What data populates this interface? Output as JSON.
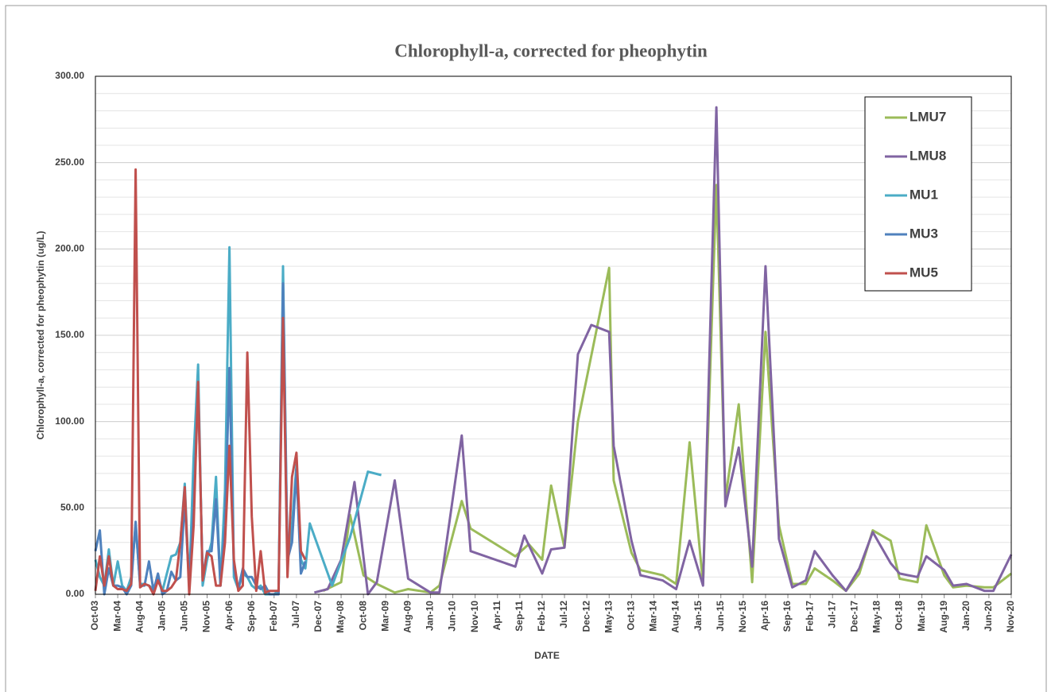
{
  "chart_data": {
    "type": "line",
    "title": "Chlorophyll-a, corrected for pheophytin",
    "x_label": "DATE",
    "y_label": "Chlorophyll-a, corrected for pheophytin (ug/L)",
    "xlim": [
      "2003-10",
      "2020-11"
    ],
    "ylim": [
      0,
      300
    ],
    "yticks": [
      {
        "value": 0,
        "label": "0.00"
      },
      {
        "value": 50,
        "label": "50.00"
      },
      {
        "value": 100,
        "label": "100.00"
      },
      {
        "value": 150,
        "label": "150.00"
      },
      {
        "value": 200,
        "label": "200.00"
      },
      {
        "value": 250,
        "label": "250.00"
      },
      {
        "value": 300,
        "label": "300.00"
      }
    ],
    "ygrid": [
      10,
      20,
      30,
      40,
      50,
      60,
      70,
      80,
      90,
      100,
      110,
      120,
      130,
      140,
      150,
      160,
      170,
      180,
      190,
      200,
      210,
      220,
      230,
      240,
      250,
      260,
      270,
      280,
      290
    ],
    "xticks": [
      {
        "value": "2003-10",
        "label": "Oct-03"
      },
      {
        "value": "2004-03",
        "label": "Mar-04"
      },
      {
        "value": "2004-08",
        "label": "Aug-04"
      },
      {
        "value": "2005-01",
        "label": "Jan-05"
      },
      {
        "value": "2005-06",
        "label": "Jun-05"
      },
      {
        "value": "2005-11",
        "label": "Nov-05"
      },
      {
        "value": "2006-04",
        "label": "Apr-06"
      },
      {
        "value": "2006-09",
        "label": "Sep-06"
      },
      {
        "value": "2007-02",
        "label": "Feb-07"
      },
      {
        "value": "2007-07",
        "label": "Jul-07"
      },
      {
        "value": "2007-12",
        "label": "Dec-07"
      },
      {
        "value": "2008-05",
        "label": "May-08"
      },
      {
        "value": "2008-10",
        "label": "Oct-08"
      },
      {
        "value": "2009-03",
        "label": "Mar-09"
      },
      {
        "value": "2009-08",
        "label": "Aug-09"
      },
      {
        "value": "2010-01",
        "label": "Jan-10"
      },
      {
        "value": "2010-06",
        "label": "Jun-10"
      },
      {
        "value": "2010-11",
        "label": "Nov-10"
      },
      {
        "value": "2011-04",
        "label": "Apr-11"
      },
      {
        "value": "2011-09",
        "label": "Sep-11"
      },
      {
        "value": "2012-02",
        "label": "Feb-12"
      },
      {
        "value": "2012-07",
        "label": "Jul-12"
      },
      {
        "value": "2012-12",
        "label": "Dec-12"
      },
      {
        "value": "2013-05",
        "label": "May-13"
      },
      {
        "value": "2013-10",
        "label": "Oct-13"
      },
      {
        "value": "2014-03",
        "label": "Mar-14"
      },
      {
        "value": "2014-08",
        "label": "Aug-14"
      },
      {
        "value": "2015-01",
        "label": "Jan-15"
      },
      {
        "value": "2015-06",
        "label": "Jun-15"
      },
      {
        "value": "2015-11",
        "label": "Nov-15"
      },
      {
        "value": "2016-04",
        "label": "Apr-16"
      },
      {
        "value": "2016-09",
        "label": "Sep-16"
      },
      {
        "value": "2017-02",
        "label": "Feb-17"
      },
      {
        "value": "2017-07",
        "label": "Jul-17"
      },
      {
        "value": "2017-12",
        "label": "Dec-17"
      },
      {
        "value": "2018-05",
        "label": "May-18"
      },
      {
        "value": "2018-10",
        "label": "Oct-18"
      },
      {
        "value": "2019-03",
        "label": "Mar-19"
      },
      {
        "value": "2019-08",
        "label": "Aug-19"
      },
      {
        "value": "2020-01",
        "label": "Jan-20"
      },
      {
        "value": "2020-06",
        "label": "Jun-20"
      },
      {
        "value": "2020-11",
        "label": "Nov-20"
      }
    ],
    "series": [
      {
        "name": "LMU7",
        "color": "#9bbb59",
        "x": [
          "2008-01",
          "2008-05",
          "2008-07",
          "2008-10",
          "2009-01",
          "2009-05",
          "2009-08",
          "2010-01",
          "2010-03",
          "2010-08",
          "2010-10",
          "2011-08",
          "2011-11",
          "2012-02",
          "2012-04",
          "2012-07",
          "2012-10",
          "2013-05",
          "2013-06",
          "2013-10",
          "2013-12",
          "2014-05",
          "2014-08",
          "2014-11",
          "2015-02",
          "2015-05",
          "2015-07",
          "2015-10",
          "2016-01",
          "2016-04",
          "2016-07",
          "2016-10",
          "2017-01",
          "2017-03",
          "2017-07",
          "2017-10",
          "2018-01",
          "2018-04",
          "2018-08",
          "2018-10",
          "2019-02",
          "2019-04",
          "2019-08",
          "2019-10",
          "2020-01",
          "2020-05",
          "2020-07",
          "2020-11"
        ],
        "values": [
          2,
          7,
          46,
          11,
          6,
          1,
          3,
          1,
          5,
          54,
          38,
          22,
          29,
          20,
          63,
          27,
          100,
          189,
          66,
          24,
          14,
          11,
          6,
          88,
          6,
          237,
          55,
          110,
          7,
          152,
          40,
          6,
          6,
          15,
          8,
          2,
          12,
          37,
          31,
          9,
          7,
          40,
          11,
          4,
          5,
          4,
          4,
          12
        ]
      },
      {
        "name": "LMU8",
        "color": "#8064a2",
        "x": [
          "2007-11",
          "2008-02",
          "2008-05",
          "2008-08",
          "2008-11",
          "2009-01",
          "2009-05",
          "2009-08",
          "2010-01",
          "2010-03",
          "2010-08",
          "2010-10",
          "2011-08",
          "2011-10",
          "2012-02",
          "2012-04",
          "2012-07",
          "2012-10",
          "2013-01",
          "2013-05",
          "2013-06",
          "2013-10",
          "2013-12",
          "2014-05",
          "2014-08",
          "2014-11",
          "2015-02",
          "2015-05",
          "2015-07",
          "2015-10",
          "2016-01",
          "2016-04",
          "2016-07",
          "2016-10",
          "2017-01",
          "2017-03",
          "2017-07",
          "2017-10",
          "2018-01",
          "2018-04",
          "2018-08",
          "2018-10",
          "2019-02",
          "2019-04",
          "2019-08",
          "2019-10",
          "2020-01",
          "2020-05",
          "2020-07",
          "2020-11"
        ],
        "values": [
          1,
          3,
          20,
          65,
          0,
          7,
          66,
          9,
          1,
          1,
          92,
          25,
          16,
          34,
          12,
          26,
          27,
          139,
          156,
          152,
          86,
          31,
          11,
          8,
          3,
          31,
          5,
          282,
          51,
          85,
          16,
          190,
          32,
          4,
          8,
          25,
          11,
          2,
          15,
          36,
          18,
          12,
          10,
          22,
          14,
          5,
          6,
          2,
          2,
          23
        ]
      },
      {
        "name": "MU1",
        "color": "#4bacc6",
        "x": [
          "2003-10",
          "2003-11",
          "2003-12",
          "2004-01",
          "2004-02",
          "2004-03",
          "2004-04",
          "2004-05",
          "2004-06",
          "2004-07",
          "2004-08",
          "2004-09",
          "2004-10",
          "2004-11",
          "2004-12",
          "2005-01",
          "2005-02",
          "2005-03",
          "2005-04",
          "2005-05",
          "2005-06",
          "2005-07",
          "2005-08",
          "2005-09",
          "2005-10",
          "2005-11",
          "2005-12",
          "2006-01",
          "2006-02",
          "2006-03",
          "2006-04",
          "2006-05",
          "2006-06",
          "2006-07",
          "2006-08",
          "2006-09",
          "2006-10",
          "2006-11",
          "2006-12",
          "2007-01",
          "2007-02",
          "2007-03",
          "2007-04",
          "2007-05",
          "2007-06",
          "2007-07",
          "2007-08",
          "2007-09",
          "2007-10",
          "2008-03",
          "2008-07",
          "2008-11",
          "2009-02"
        ],
        "values": [
          20,
          10,
          5,
          26,
          5,
          19,
          5,
          2,
          10,
          40,
          6,
          6,
          5,
          3,
          10,
          2,
          12,
          22,
          23,
          30,
          64,
          5,
          80,
          133,
          5,
          20,
          30,
          68,
          5,
          60,
          201,
          10,
          3,
          12,
          10,
          5,
          3,
          5,
          0,
          0,
          0,
          2,
          190,
          20,
          40,
          75,
          20,
          15,
          41,
          5,
          33,
          71,
          69
        ]
      },
      {
        "name": "MU3",
        "color": "#4f81bd",
        "x": [
          "2003-10",
          "2003-11",
          "2003-12",
          "2004-01",
          "2004-02",
          "2004-03",
          "2004-04",
          "2004-05",
          "2004-06",
          "2004-07",
          "2004-08",
          "2004-09",
          "2004-10",
          "2004-11",
          "2004-12",
          "2005-01",
          "2005-02",
          "2005-03",
          "2005-04",
          "2005-05",
          "2005-06",
          "2005-07",
          "2005-08",
          "2005-09",
          "2005-10",
          "2005-11",
          "2005-12",
          "2006-01",
          "2006-02",
          "2006-03",
          "2006-04",
          "2006-05",
          "2006-06",
          "2006-07",
          "2006-08",
          "2006-09",
          "2006-10",
          "2006-11",
          "2006-12",
          "2007-01",
          "2007-02",
          "2007-03",
          "2007-04",
          "2007-05",
          "2007-06",
          "2007-07",
          "2007-08",
          "2007-09"
        ],
        "values": [
          25,
          37,
          0,
          15,
          5,
          5,
          4,
          0,
          5,
          42,
          5,
          5,
          19,
          2,
          12,
          0,
          2,
          13,
          8,
          10,
          55,
          5,
          50,
          120,
          10,
          25,
          25,
          55,
          5,
          40,
          131,
          15,
          3,
          15,
          10,
          10,
          5,
          3,
          5,
          0,
          0,
          0,
          180,
          20,
          30,
          72,
          12,
          19
        ]
      },
      {
        "name": "MU5",
        "color": "#c0504d",
        "x": [
          "2003-10",
          "2003-11",
          "2003-12",
          "2004-01",
          "2004-02",
          "2004-03",
          "2004-04",
          "2004-05",
          "2004-06",
          "2004-07",
          "2004-08",
          "2004-09",
          "2004-10",
          "2004-11",
          "2004-12",
          "2005-01",
          "2005-02",
          "2005-03",
          "2005-04",
          "2005-05",
          "2005-06",
          "2005-07",
          "2005-08",
          "2005-09",
          "2005-10",
          "2005-11",
          "2005-12",
          "2006-01",
          "2006-02",
          "2006-03",
          "2006-04",
          "2006-05",
          "2006-06",
          "2006-07",
          "2006-08",
          "2006-09",
          "2006-10",
          "2006-11",
          "2006-12",
          "2007-01",
          "2007-02",
          "2007-03",
          "2007-04",
          "2007-05",
          "2007-06",
          "2007-07",
          "2007-08",
          "2007-09"
        ],
        "values": [
          2,
          22,
          5,
          22,
          5,
          3,
          3,
          2,
          6,
          246,
          4,
          6,
          5,
          0,
          8,
          2,
          2,
          4,
          8,
          30,
          62,
          0,
          40,
          123,
          8,
          24,
          22,
          5,
          5,
          30,
          86,
          20,
          2,
          5,
          140,
          45,
          2,
          25,
          1,
          2,
          2,
          2,
          160,
          10,
          68,
          82,
          25,
          20
        ]
      }
    ]
  }
}
